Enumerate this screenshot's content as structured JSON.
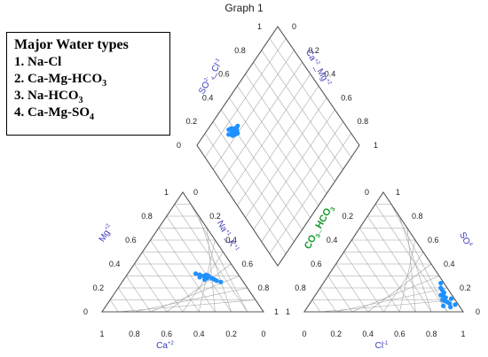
{
  "graph_title": "Graph 1",
  "legend": {
    "title": "Major Water types",
    "items": [
      {
        "num": "1.",
        "parts": [
          "Na-Cl"
        ]
      },
      {
        "num": "2.",
        "parts": [
          "Ca-Mg-HCO",
          "3"
        ]
      },
      {
        "num": "3.",
        "parts": [
          "Na-HCO",
          "3"
        ]
      },
      {
        "num": "4.",
        "parts": [
          "Ca-Mg-SO",
          "4"
        ]
      }
    ]
  },
  "colors": {
    "points": "#1e90ff",
    "grid": "#a0a0a0",
    "frame": "#555555",
    "label_blue": "#3a3ab8",
    "label_green": "#1a9a30"
  },
  "chart_data": {
    "type": "scatter",
    "subtype": "piper-diagram",
    "tick_labels": [
      "0",
      "0.2",
      "0.4",
      "0.6",
      "0.8",
      "1"
    ],
    "cation_triangle": {
      "label_left": "Mg+2",
      "label_right": "Na+1_K+1",
      "label_bottom": "Ca+2",
      "points": [
        {
          "ca": 0.26,
          "mg": 0.32
        },
        {
          "ca": 0.25,
          "mg": 0.29
        },
        {
          "ca": 0.24,
          "mg": 0.31
        },
        {
          "ca": 0.22,
          "mg": 0.3
        },
        {
          "ca": 0.2,
          "mg": 0.31
        },
        {
          "ca": 0.21,
          "mg": 0.28
        },
        {
          "ca": 0.18,
          "mg": 0.28
        },
        {
          "ca": 0.17,
          "mg": 0.27
        },
        {
          "ca": 0.16,
          "mg": 0.26
        },
        {
          "ca": 0.19,
          "mg": 0.3
        },
        {
          "ca": 0.14,
          "mg": 0.25
        },
        {
          "ca": 0.23,
          "mg": 0.27
        }
      ]
    },
    "anion_triangle": {
      "label_left": "CO3_HCO3",
      "label_right": "SO4",
      "label_bottom": "Cl-1",
      "points": [
        {
          "cl": 0.78,
          "so4": 0.18
        },
        {
          "cl": 0.8,
          "so4": 0.16
        },
        {
          "cl": 0.79,
          "so4": 0.14
        },
        {
          "cl": 0.81,
          "so4": 0.13
        },
        {
          "cl": 0.83,
          "so4": 0.12
        },
        {
          "cl": 0.82,
          "so4": 0.1
        },
        {
          "cl": 0.84,
          "so4": 0.09
        },
        {
          "cl": 0.86,
          "so4": 0.08
        },
        {
          "cl": 0.88,
          "so4": 0.07
        },
        {
          "cl": 0.85,
          "so4": 0.05
        },
        {
          "cl": 0.9,
          "so4": 0.04
        },
        {
          "cl": 0.87,
          "so4": 0.11
        },
        {
          "cl": 0.76,
          "so4": 0.2
        },
        {
          "cl": 0.92,
          "so4": 0.06
        },
        {
          "cl": 0.74,
          "so4": 0.24
        }
      ]
    },
    "diamond": {
      "label_left": "SO2-4_Cl-1",
      "label_right": "Ca+2_Mg+2",
      "points": [
        {
          "cam": 0.29,
          "socl": 0.83
        },
        {
          "cam": 0.28,
          "socl": 0.81
        },
        {
          "cam": 0.27,
          "socl": 0.84
        },
        {
          "cam": 0.3,
          "socl": 0.8
        },
        {
          "cam": 0.26,
          "socl": 0.82
        },
        {
          "cam": 0.25,
          "socl": 0.84
        },
        {
          "cam": 0.31,
          "socl": 0.82
        },
        {
          "cam": 0.24,
          "socl": 0.85
        },
        {
          "cam": 0.28,
          "socl": 0.86
        },
        {
          "cam": 0.3,
          "socl": 0.84
        },
        {
          "cam": 0.26,
          "socl": 0.87
        },
        {
          "cam": 0.33,
          "socl": 0.83
        }
      ]
    }
  }
}
